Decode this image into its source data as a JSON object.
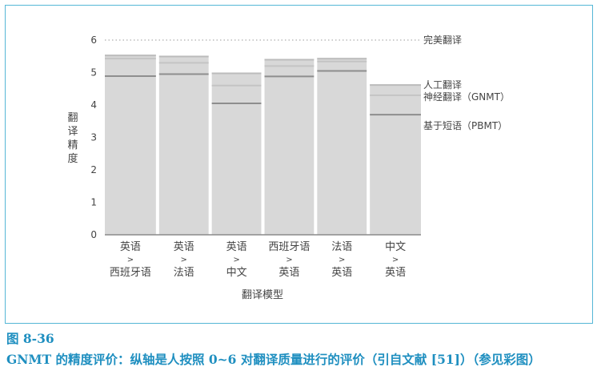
{
  "chart_data": {
    "type": "bar",
    "categories": [
      {
        "top": "英语",
        "arrow": ">",
        "bottom": "西班牙语"
      },
      {
        "top": "英语",
        "arrow": ">",
        "bottom": "法语"
      },
      {
        "top": "英语",
        "arrow": ">",
        "bottom": "中文"
      },
      {
        "top": "西班牙语",
        "arrow": ">",
        "bottom": "英语"
      },
      {
        "top": "法语",
        "arrow": ">",
        "bottom": "英语"
      },
      {
        "top": "中文",
        "arrow": ">",
        "bottom": "英语"
      }
    ],
    "series": [
      {
        "name": "人工翻译",
        "values": [
          5.55,
          5.52,
          5.0,
          5.42,
          5.45,
          4.64
        ]
      },
      {
        "name": "神经翻译（GNMT）",
        "values": [
          5.43,
          5.3,
          4.6,
          5.2,
          5.34,
          4.3
        ]
      },
      {
        "name": "基于短语（PBMT）",
        "values": [
          4.89,
          4.95,
          4.05,
          4.88,
          5.05,
          3.7
        ]
      }
    ],
    "reference_line": {
      "label": "完美翻译",
      "value": 6
    },
    "xlabel": "翻译模型",
    "ylabel": "翻译精度",
    "ylim": [
      0,
      6
    ],
    "yticks": [
      "0",
      "1",
      "2",
      "3",
      "4",
      "5",
      "6"
    ],
    "colors": {
      "bar": "#d8d8d8",
      "human_line": "#bcbcbc",
      "gnmt_line": "#c4c4c4",
      "pbmt_line": "#8e8e8e",
      "text": "#444444",
      "frame": "#55b7d6",
      "caption": "#1f8fc0"
    }
  },
  "caption": {
    "figure_number": "图 8-36",
    "title": "GNMT 的精度评价：纵轴是人按照 0~6 对翻译质量进行的评价（引自文献 [51]）（参见彩图）"
  }
}
